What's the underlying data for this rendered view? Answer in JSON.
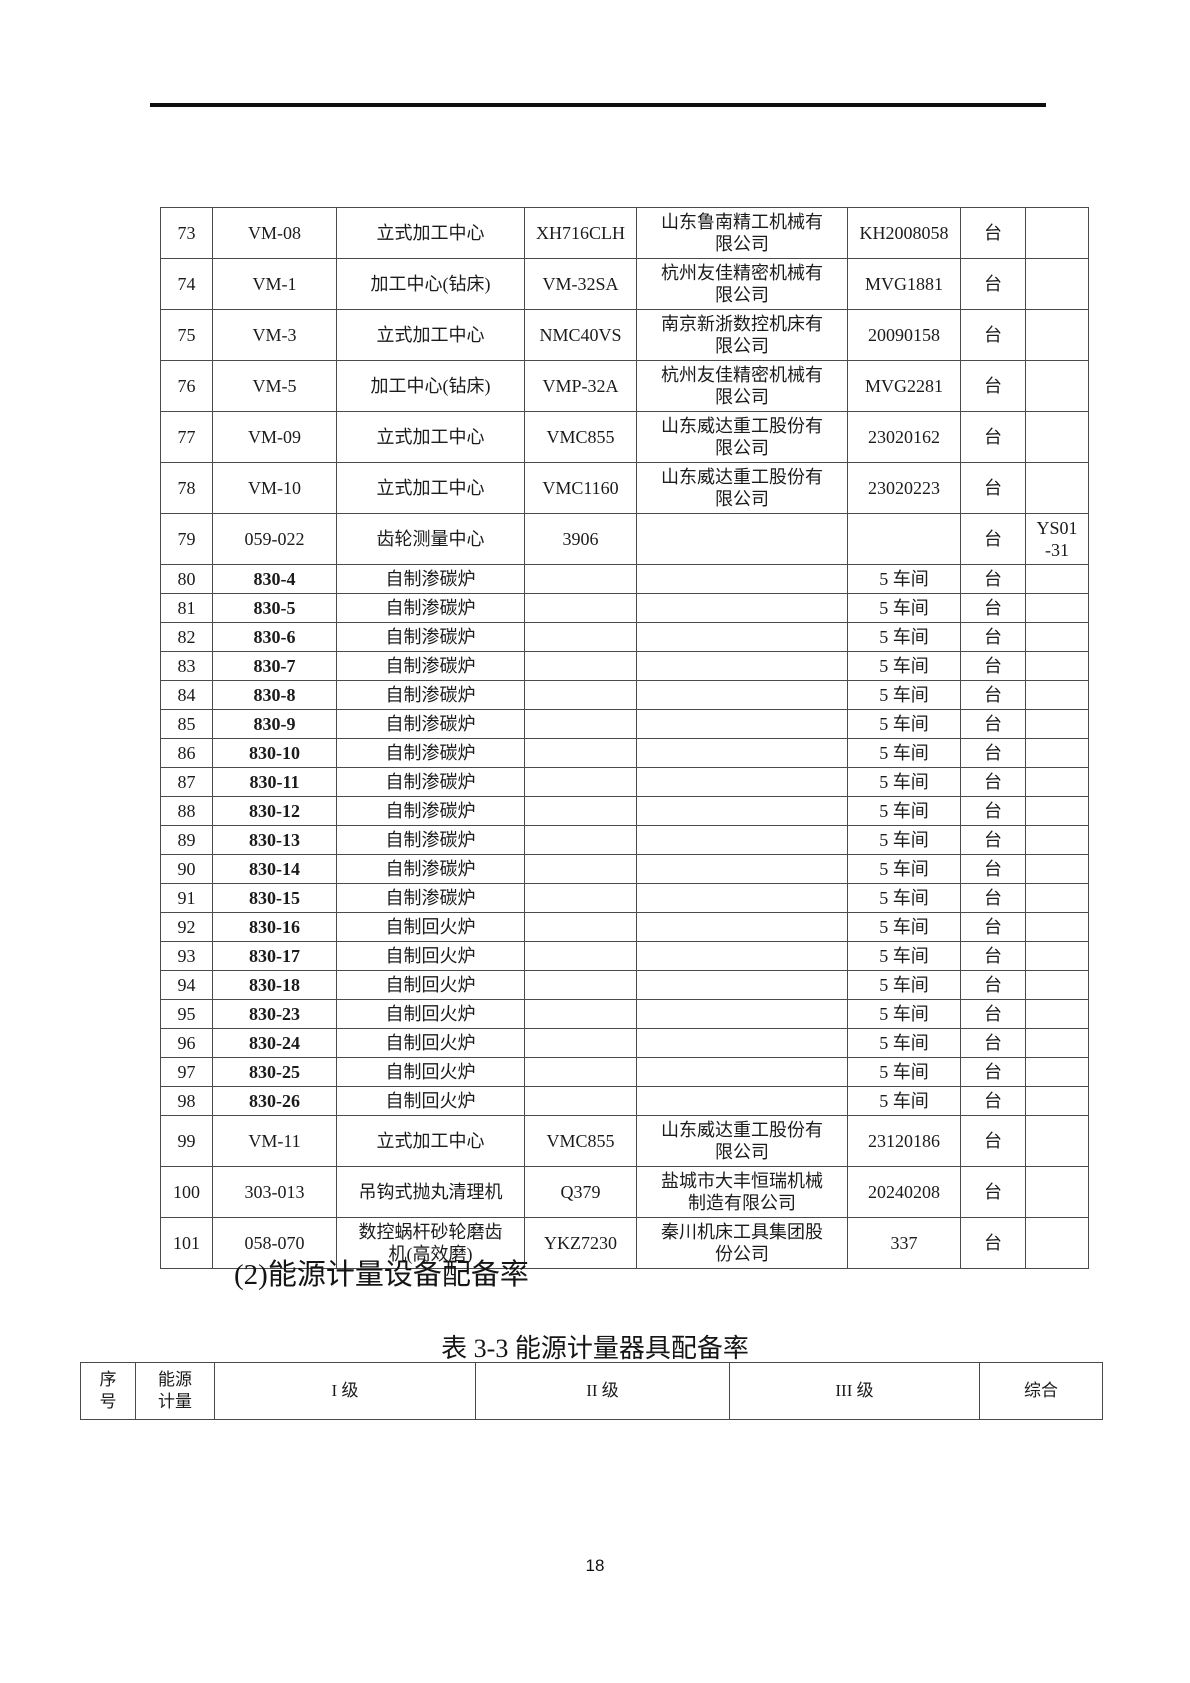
{
  "heading": "(2)能源计量设备配备率",
  "table_caption": "表 3-3 能源计量器具配备率",
  "equipment_table": {
    "rows": [
      {
        "no": "73",
        "code": "VM-08",
        "name": "立式加工中心",
        "model": "XH716CLH",
        "supplier": [
          "山东鲁南精工机械有",
          "限公司"
        ],
        "serial": "KH2008058",
        "unit": "台",
        "note": ""
      },
      {
        "no": "74",
        "code": "VM-1",
        "name": "加工中心(钻床)",
        "model": "VM-32SA",
        "supplier": [
          "杭州友佳精密机械有",
          "限公司"
        ],
        "serial": "MVG1881",
        "unit": "台",
        "note": ""
      },
      {
        "no": "75",
        "code": "VM-3",
        "name": "立式加工中心",
        "model": "NMC40VS",
        "supplier": [
          "南京新浙数控机床有",
          "限公司"
        ],
        "serial": "20090158",
        "unit": "台",
        "note": ""
      },
      {
        "no": "76",
        "code": "VM-5",
        "name": "加工中心(钻床)",
        "model": "VMP-32A",
        "supplier": [
          "杭州友佳精密机械有",
          "限公司"
        ],
        "serial": "MVG2281",
        "unit": "台",
        "note": ""
      },
      {
        "no": "77",
        "code": "VM-09",
        "name": "立式加工中心",
        "model": "VMC855",
        "supplier": [
          "山东威达重工股份有",
          "限公司"
        ],
        "serial": "23020162",
        "unit": "台",
        "note": ""
      },
      {
        "no": "78",
        "code": "VM-10",
        "name": "立式加工中心",
        "model": "VMC1160",
        "supplier": [
          "山东威达重工股份有",
          "限公司"
        ],
        "serial": "23020223",
        "unit": "台",
        "note": ""
      },
      {
        "no": "79",
        "code": "059-022",
        "name": "齿轮测量中心",
        "model": "3906",
        "supplier": "",
        "serial": "",
        "unit": "台",
        "note": [
          "YS01",
          "-31"
        ]
      },
      {
        "no": "80",
        "code": "830-4",
        "code_bold": true,
        "name": "自制渗碳炉",
        "model": "",
        "supplier": "",
        "serial": "5 车间",
        "unit": "台",
        "note": ""
      },
      {
        "no": "81",
        "code": "830-5",
        "code_bold": true,
        "name": "自制渗碳炉",
        "model": "",
        "supplier": "",
        "serial": "5 车间",
        "unit": "台",
        "note": ""
      },
      {
        "no": "82",
        "code": "830-6",
        "code_bold": true,
        "name": "自制渗碳炉",
        "model": "",
        "supplier": "",
        "serial": "5 车间",
        "unit": "台",
        "note": ""
      },
      {
        "no": "83",
        "code": "830-7",
        "code_bold": true,
        "name": "自制渗碳炉",
        "model": "",
        "supplier": "",
        "serial": "5 车间",
        "unit": "台",
        "note": ""
      },
      {
        "no": "84",
        "code": "830-8",
        "code_bold": true,
        "name": "自制渗碳炉",
        "model": "",
        "supplier": "",
        "serial": "5 车间",
        "unit": "台",
        "note": ""
      },
      {
        "no": "85",
        "code": "830-9",
        "code_bold": true,
        "name": "自制渗碳炉",
        "model": "",
        "supplier": "",
        "serial": "5 车间",
        "unit": "台",
        "note": ""
      },
      {
        "no": "86",
        "code": "830-10",
        "code_bold": true,
        "name": "自制渗碳炉",
        "model": "",
        "supplier": "",
        "serial": "5 车间",
        "unit": "台",
        "note": ""
      },
      {
        "no": "87",
        "code": "830-11",
        "code_bold": true,
        "name": "自制渗碳炉",
        "model": "",
        "supplier": "",
        "serial": "5 车间",
        "unit": "台",
        "note": ""
      },
      {
        "no": "88",
        "code": "830-12",
        "code_bold": true,
        "name": "自制渗碳炉",
        "model": "",
        "supplier": "",
        "serial": "5 车间",
        "unit": "台",
        "note": ""
      },
      {
        "no": "89",
        "code": "830-13",
        "code_bold": true,
        "name": "自制渗碳炉",
        "model": "",
        "supplier": "",
        "serial": "5 车间",
        "unit": "台",
        "note": ""
      },
      {
        "no": "90",
        "code": "830-14",
        "code_bold": true,
        "name": "自制渗碳炉",
        "model": "",
        "supplier": "",
        "serial": "5 车间",
        "unit": "台",
        "note": ""
      },
      {
        "no": "91",
        "code": "830-15",
        "code_bold": true,
        "name": "自制渗碳炉",
        "model": "",
        "supplier": "",
        "serial": "5 车间",
        "unit": "台",
        "note": ""
      },
      {
        "no": "92",
        "code": "830-16",
        "code_bold": true,
        "name": "自制回火炉",
        "model": "",
        "supplier": "",
        "serial": "5 车间",
        "unit": "台",
        "note": ""
      },
      {
        "no": "93",
        "code": "830-17",
        "code_bold": true,
        "name": "自制回火炉",
        "model": "",
        "supplier": "",
        "serial": "5 车间",
        "unit": "台",
        "note": ""
      },
      {
        "no": "94",
        "code": "830-18",
        "code_bold": true,
        "name": "自制回火炉",
        "model": "",
        "supplier": "",
        "serial": "5 车间",
        "unit": "台",
        "note": ""
      },
      {
        "no": "95",
        "code": "830-23",
        "code_bold": true,
        "name": "自制回火炉",
        "model": "",
        "supplier": "",
        "serial": "5 车间",
        "unit": "台",
        "note": ""
      },
      {
        "no": "96",
        "code": "830-24",
        "code_bold": true,
        "name": "自制回火炉",
        "model": "",
        "supplier": "",
        "serial": "5 车间",
        "unit": "台",
        "note": ""
      },
      {
        "no": "97",
        "code": "830-25",
        "code_bold": true,
        "name": "自制回火炉",
        "model": "",
        "supplier": "",
        "serial": "5 车间",
        "unit": "台",
        "note": ""
      },
      {
        "no": "98",
        "code": "830-26",
        "code_bold": true,
        "name": "自制回火炉",
        "model": "",
        "supplier": "",
        "serial": "5 车间",
        "unit": "台",
        "note": ""
      },
      {
        "no": "99",
        "code": "VM-11",
        "name": "立式加工中心",
        "model": "VMC855",
        "supplier": [
          "山东威达重工股份有",
          "限公司"
        ],
        "serial": "23120186",
        "unit": "台",
        "note": ""
      },
      {
        "no": "100",
        "code": "303-013",
        "name": "吊钩式抛丸清理机",
        "model": "Q379",
        "supplier": [
          "盐城市大丰恒瑞机械",
          "制造有限公司"
        ],
        "serial": "20240208",
        "unit": "台",
        "note": ""
      },
      {
        "no": "101",
        "code": "058-070",
        "name": [
          "数控蜗杆砂轮磨齿",
          "机(高效磨)"
        ],
        "model": "YKZ7230",
        "supplier": [
          "秦川机床工具集团股",
          "份公司"
        ],
        "serial": "337",
        "unit": "台",
        "note": ""
      }
    ]
  },
  "metering_table": {
    "headers": [
      [
        "序",
        "号"
      ],
      [
        "能源",
        "计量"
      ],
      "I 级",
      "II 级",
      "III 级",
      "综合"
    ]
  },
  "page": {
    "number": "18"
  }
}
